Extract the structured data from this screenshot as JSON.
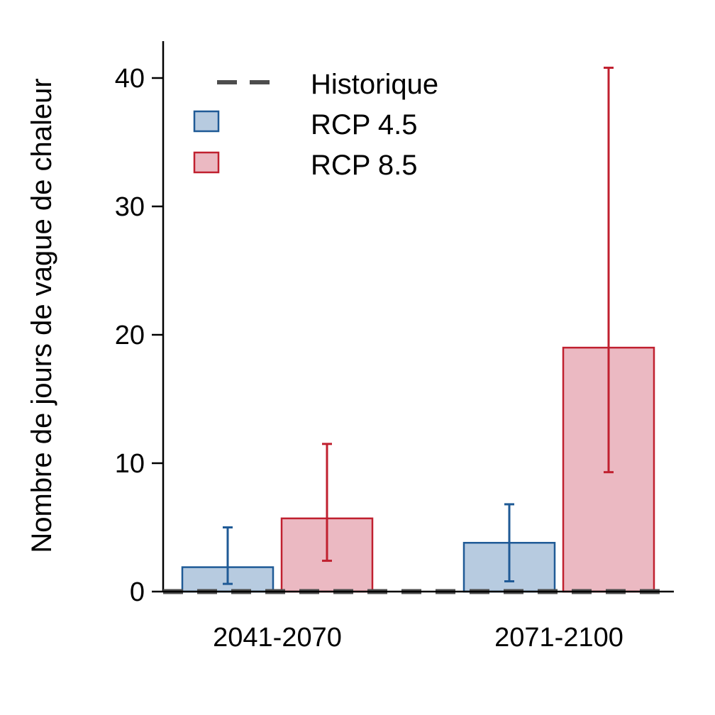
{
  "colors": {
    "rcp45_fill": "#b7cbe0",
    "rcp45_stroke": "#1f5a96",
    "rcp85_fill": "#ebb9c2",
    "rcp85_stroke": "#c0202f",
    "historic_line": "#4d4d4d",
    "axis": "#000000"
  },
  "chart_data": {
    "type": "bar",
    "title": "",
    "xlabel": "",
    "ylabel": "Nombre de jours de vague de chaleur",
    "categories": [
      "2041-2070",
      "2071-2100"
    ],
    "ylim": [
      0,
      43
    ],
    "yticks": [
      0,
      10,
      20,
      30,
      40
    ],
    "grid": false,
    "legend_position": "top-left",
    "historic": {
      "name": "Historique",
      "value": 0
    },
    "series": [
      {
        "name": "RCP 4.5",
        "values": [
          1.9,
          3.8
        ],
        "err_low": [
          0.6,
          0.8
        ],
        "err_high": [
          5.0,
          6.8
        ]
      },
      {
        "name": "RCP 8.5",
        "values": [
          5.7,
          19.0
        ],
        "err_low": [
          2.4,
          9.3
        ],
        "err_high": [
          11.5,
          40.8
        ]
      }
    ]
  }
}
